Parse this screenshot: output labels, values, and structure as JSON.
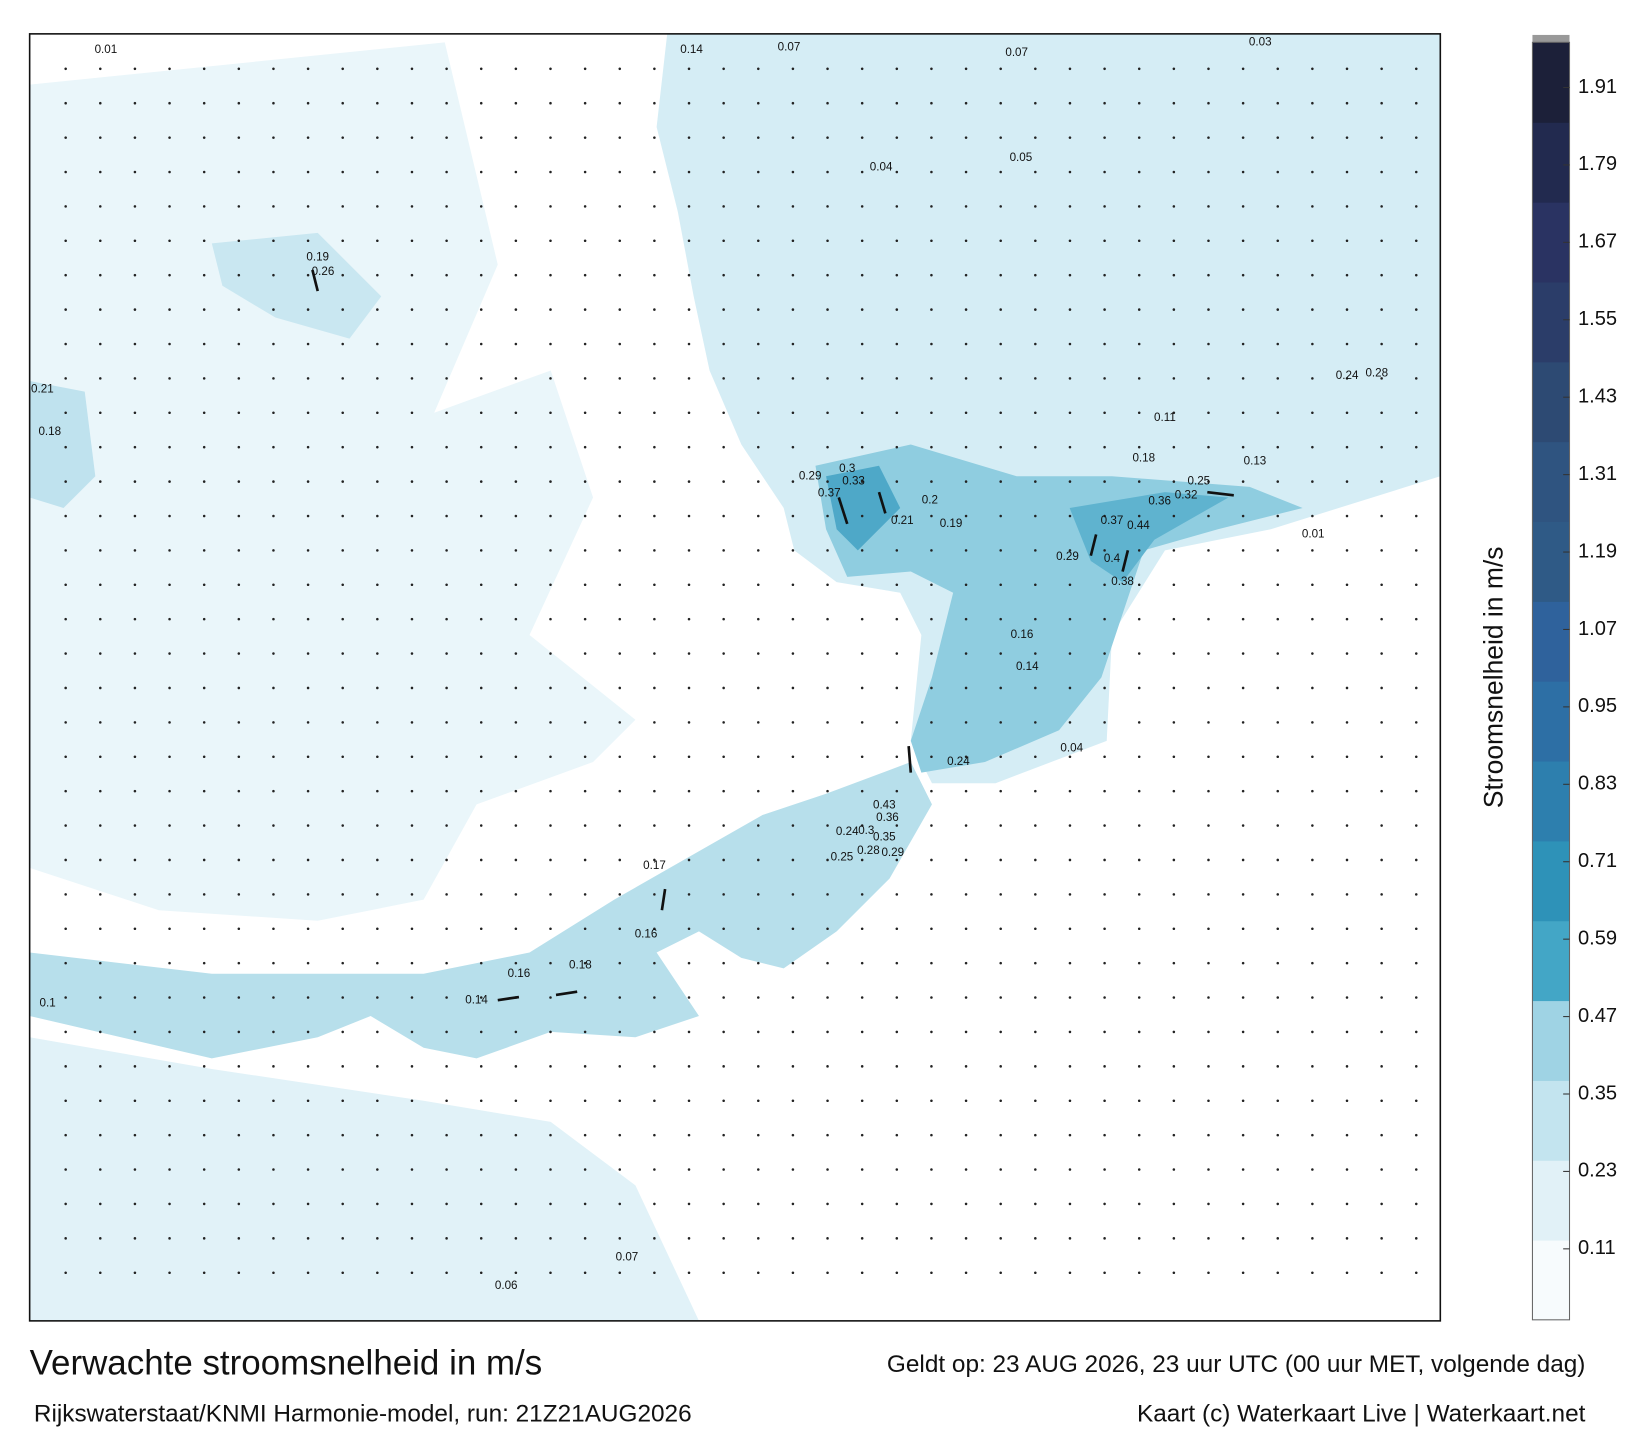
{
  "title": "Verwachte stroomsnelheid in m/s",
  "valid_time": "Geldt op: 23 AUG 2026, 23 uur UTC (00 uur MET, volgende dag)",
  "model_run": "Rijkswaterstaat/KNMI Harmonie-model, run: 21Z21AUG2026",
  "credit": "Kaart (c) Waterkaart Live | Waterkaart.net",
  "colorbar": {
    "label": "Stroomsnelheid in m/s",
    "lim": [
      0,
      1.98
    ],
    "ticks": [
      0.11,
      0.23,
      0.35,
      0.47,
      0.59,
      0.71,
      0.83,
      0.95,
      1.07,
      1.19,
      1.31,
      1.43,
      1.55,
      1.67,
      1.79,
      1.91
    ],
    "colors": [
      "#f7fbfd",
      "#e1f1f7",
      "#c3e4ef",
      "#9fd3e4",
      "#43a6c6",
      "#2e92b8",
      "#2d7fae",
      "#2d6fa5",
      "#2f629c",
      "#2f5a86",
      "#2f5480",
      "#2d4a73",
      "#2b3d69",
      "#2a3362",
      "#222a4f",
      "#1c2039"
    ]
  },
  "map_labels": [
    0.3,
    0.33,
    0.37,
    0.29,
    0.21,
    0.37,
    0.44,
    0.36,
    0.32,
    0.4,
    0.38,
    0.29,
    0.43,
    0.36,
    0.35,
    0.24,
    0.3,
    0.29,
    0.28,
    0.25,
    0.18,
    0.25,
    0.13,
    0.2,
    0.19,
    0.16,
    0.14,
    0.24,
    0.17,
    0.16,
    0.18,
    0.16,
    0.14,
    0.18,
    0.21,
    0.26,
    0.19,
    0.14,
    0.07,
    0.07,
    0.03,
    0.01,
    0.28,
    0.24,
    0.1,
    0.06,
    0.07,
    0.04,
    0.01,
    0.11,
    0.05,
    0.04
  ]
}
